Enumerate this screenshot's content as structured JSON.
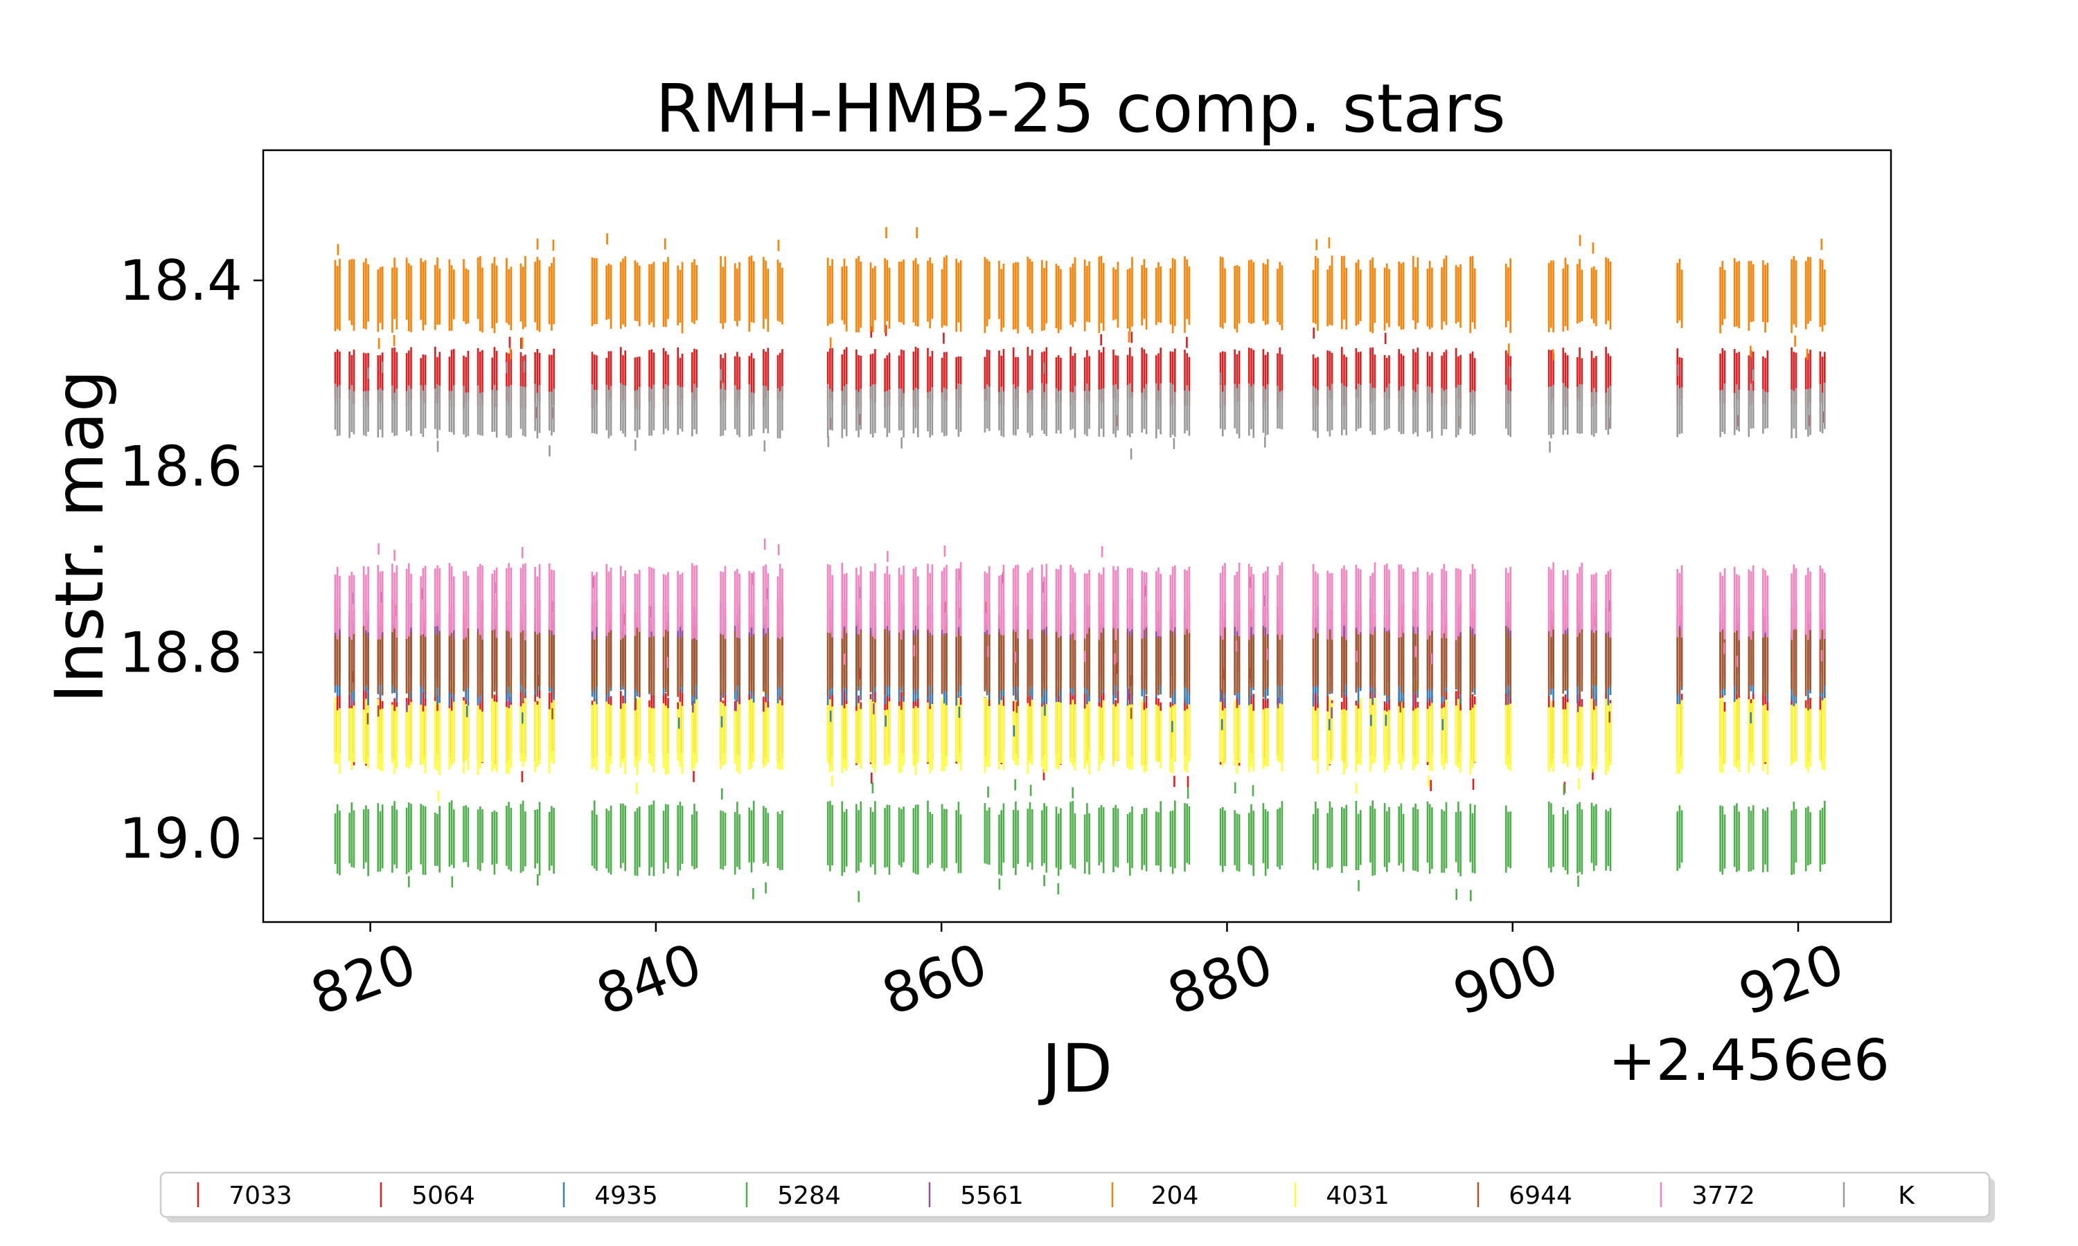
{
  "chart_data": {
    "type": "line",
    "title": "RMH-HMB-25 comp. stars",
    "xlabel": "JD",
    "ylabel": "Instr. mag",
    "x_offset_label": "+2.456e6",
    "xlim": [
      2456812.5,
      2456926.5
    ],
    "ylim": [
      19.09,
      18.26
    ],
    "y_inverted": true,
    "x_ticks": [
      {
        "value": 2456820,
        "label": "820"
      },
      {
        "value": 2456840,
        "label": "840"
      },
      {
        "value": 2456860,
        "label": "860"
      },
      {
        "value": 2456880,
        "label": "880"
      },
      {
        "value": 2456900,
        "label": "900"
      },
      {
        "value": 2456920,
        "label": "920"
      }
    ],
    "y_ticks": [
      {
        "value": 18.4,
        "label": "18.4"
      },
      {
        "value": 18.6,
        "label": "18.6"
      },
      {
        "value": 18.8,
        "label": "18.8"
      },
      {
        "value": 19.0,
        "label": "19.0"
      }
    ],
    "grid": false,
    "legend_position": "bottom",
    "observation_nights": [
      817.7,
      818.7,
      819.7,
      820.7,
      821.7,
      822.7,
      823.7,
      824.7,
      825.7,
      826.7,
      827.7,
      828.7,
      829.7,
      830.7,
      831.7,
      832.7,
      835.7,
      836.7,
      837.7,
      838.7,
      839.7,
      840.7,
      841.7,
      842.7,
      844.7,
      845.7,
      846.7,
      847.7,
      848.7,
      852.2,
      853.2,
      854.2,
      855.2,
      856.2,
      857.2,
      858.2,
      859.2,
      860.2,
      861.2,
      863.2,
      864.2,
      865.2,
      866.2,
      867.2,
      868.2,
      869.2,
      870.2,
      871.2,
      872.2,
      873.2,
      874.2,
      875.2,
      876.2,
      877.2,
      879.7,
      880.7,
      881.7,
      882.7,
      883.7,
      886.2,
      887.2,
      888.2,
      889.2,
      890.2,
      891.2,
      892.2,
      893.2,
      894.2,
      895.2,
      896.2,
      897.2,
      899.7,
      902.7,
      903.7,
      904.7,
      905.7,
      906.7,
      911.7,
      914.7,
      915.7,
      916.7,
      917.7,
      919.7,
      920.7,
      921.7
    ],
    "series": [
      {
        "name": "7033",
        "color": "#e41a1c",
        "mean_mag": 18.88,
        "scatter_mag": 0.035
      },
      {
        "name": "5064",
        "color": "#e41a1c",
        "mean_mag": 18.505,
        "scatter_mag": 0.028
      },
      {
        "name": "4935",
        "color": "#377eb8",
        "mean_mag": 18.81,
        "scatter_mag": 0.04
      },
      {
        "name": "5284",
        "color": "#4daf4a",
        "mean_mag": 19.0,
        "scatter_mag": 0.034
      },
      {
        "name": "5561",
        "color": "#984ea3",
        "mean_mag": 18.79,
        "scatter_mag": 0.04
      },
      {
        "name": "204",
        "color": "#ff7f00",
        "mean_mag": 18.415,
        "scatter_mag": 0.035
      },
      {
        "name": "4031",
        "color": "#ffff33",
        "mean_mag": 18.89,
        "scatter_mag": 0.035
      },
      {
        "name": "6944",
        "color": "#a65628",
        "mean_mag": 18.81,
        "scatter_mag": 0.033
      },
      {
        "name": "3772",
        "color": "#f781bf",
        "mean_mag": 18.745,
        "scatter_mag": 0.035
      },
      {
        "name": "K",
        "color": "#999999",
        "mean_mag": 18.54,
        "scatter_mag": 0.025
      }
    ],
    "draw_order": [
      "7033",
      "5284",
      "4031",
      "4935",
      "5561",
      "6944",
      "3772",
      "5064",
      "K",
      "204"
    ]
  }
}
